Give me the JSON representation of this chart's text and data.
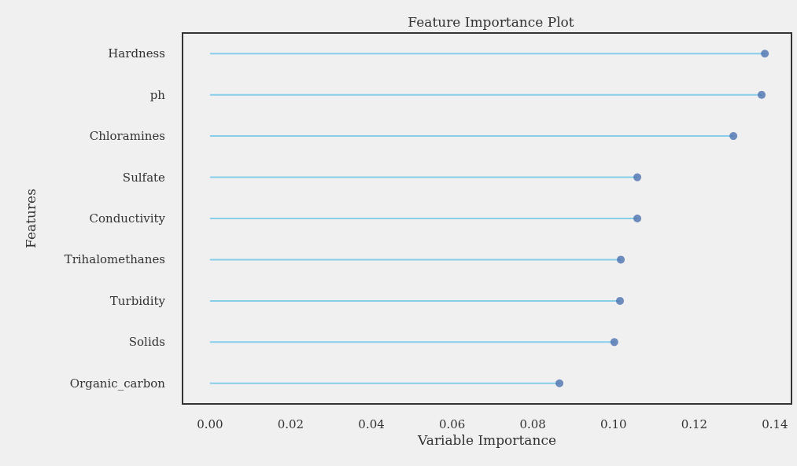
{
  "chart_data": {
    "type": "lollipop",
    "orientation": "horizontal",
    "title": "Feature Importance Plot",
    "xlabel": "Variable Importance",
    "ylabel": "Features",
    "categories": [
      "Hardness",
      "ph",
      "Chloramines",
      "Sulfate",
      "Conductivity",
      "Trihalomethanes",
      "Turbidity",
      "Solids",
      "Organic_carbon"
    ],
    "values": [
      0.1375,
      0.1367,
      0.1297,
      0.1059,
      0.1059,
      0.1018,
      0.1016,
      0.1002,
      0.0866
    ],
    "color": "#4c72b0",
    "xlim": [
      -0.0068,
      0.1441
    ],
    "xticks": [
      {
        "value": 0,
        "label": "0.00"
      },
      {
        "value": 0.02,
        "label": "0.02"
      },
      {
        "value": 0.04,
        "label": "0.04"
      },
      {
        "value": 0.06,
        "label": "0.06"
      },
      {
        "value": 0.08,
        "label": "0.08"
      },
      {
        "value": 0.1,
        "label": "0.10"
      },
      {
        "value": 0.12,
        "label": "0.12"
      },
      {
        "value": 0.14,
        "label": "0.14"
      }
    ],
    "grid": false,
    "marker": "circle"
  }
}
